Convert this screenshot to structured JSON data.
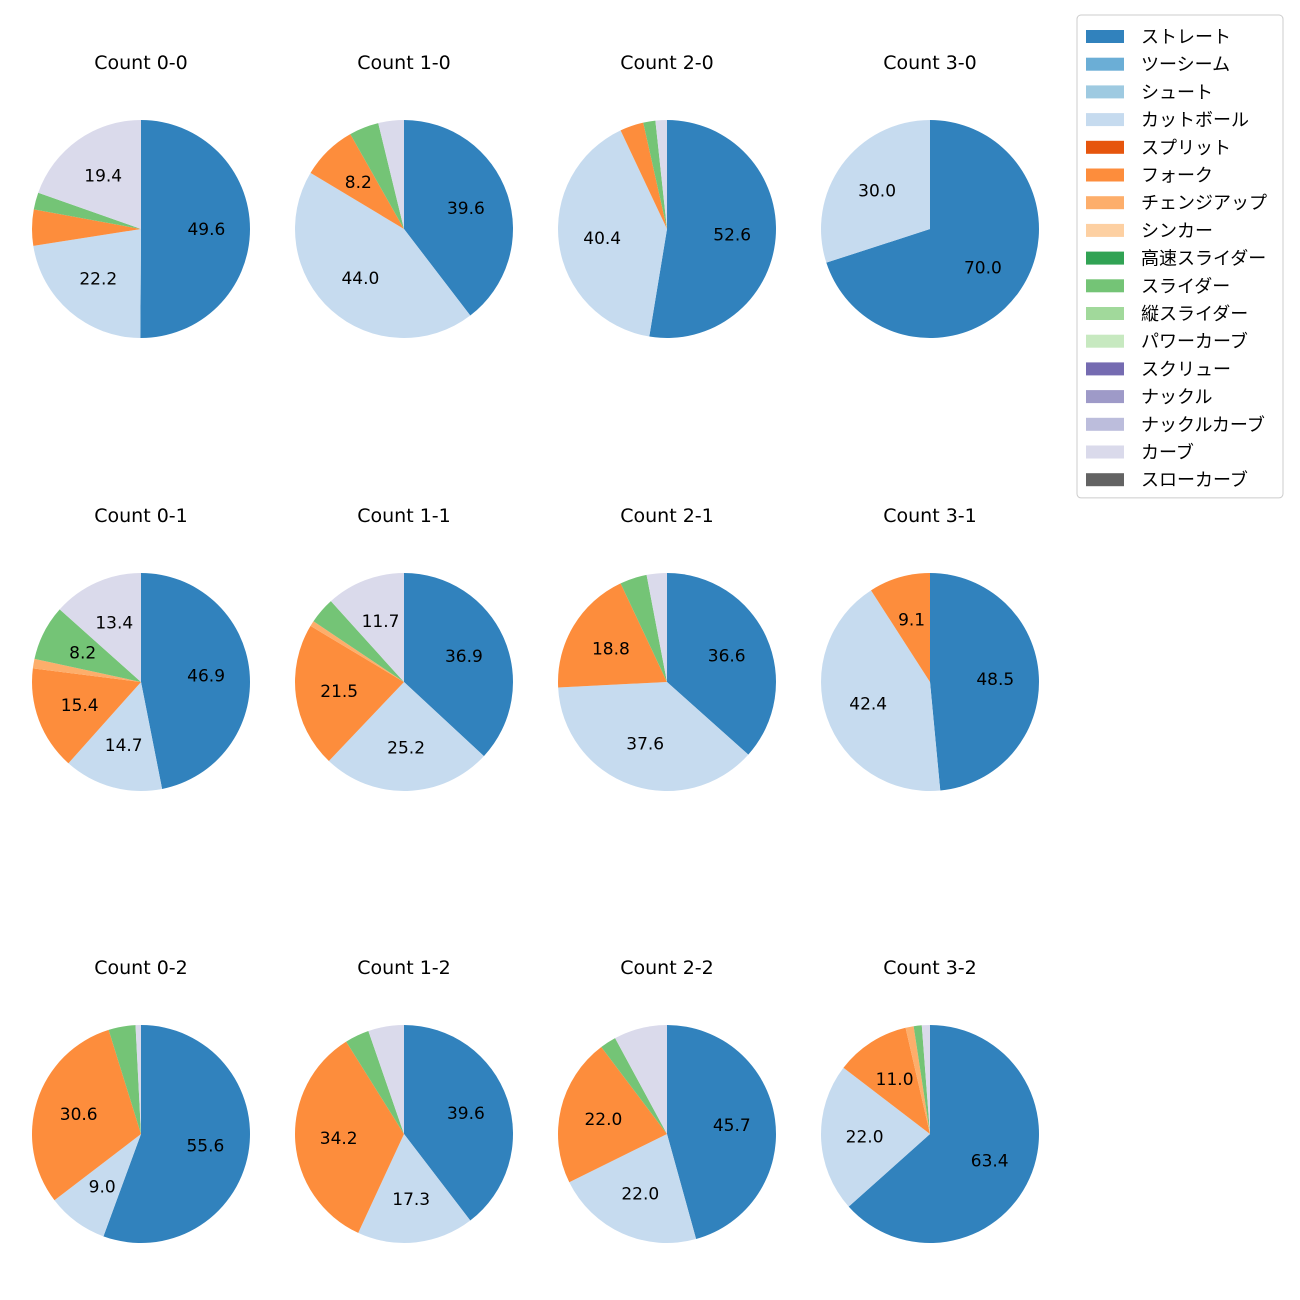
{
  "chart_data": {
    "type": "pie",
    "legend": {
      "position": "top-right",
      "items": [
        {
          "name": "ストレート",
          "color": "#3182bd"
        },
        {
          "name": "ツーシーム",
          "color": "#6baed6"
        },
        {
          "name": "シュート",
          "color": "#9ecae1"
        },
        {
          "name": "カットボール",
          "color": "#c6dbef"
        },
        {
          "name": "スプリット",
          "color": "#e6550d"
        },
        {
          "name": "フォーク",
          "color": "#fd8d3c"
        },
        {
          "name": "チェンジアップ",
          "color": "#fdae6b"
        },
        {
          "name": "シンカー",
          "color": "#fdd0a2"
        },
        {
          "name": "高速スライダー",
          "color": "#31a354"
        },
        {
          "name": "スライダー",
          "color": "#74c476"
        },
        {
          "name": "縦スライダー",
          "color": "#a1d99b"
        },
        {
          "name": "パワーカーブ",
          "color": "#c7e9c0"
        },
        {
          "name": "スクリュー",
          "color": "#756bb1"
        },
        {
          "name": "ナックル",
          "color": "#9e9ac8"
        },
        {
          "name": "ナックルカーブ",
          "color": "#bcbddc"
        },
        {
          "name": "カーブ",
          "color": "#dadaeb"
        },
        {
          "name": "スローカーブ",
          "color": "#636363"
        }
      ]
    },
    "pies": [
      {
        "title": "Count 0-0",
        "slices": [
          {
            "type": "ストレート",
            "value": 49.6,
            "label": "49.6"
          },
          {
            "type": "カットボール",
            "value": 22.2,
            "label": "22.2"
          },
          {
            "type": "フォーク",
            "value": 5.3
          },
          {
            "type": "スライダー",
            "value": 2.5
          },
          {
            "type": "カーブ",
            "value": 19.4,
            "label": "19.4"
          }
        ]
      },
      {
        "title": "Count 1-0",
        "slices": [
          {
            "type": "ストレート",
            "value": 39.6,
            "label": "39.6"
          },
          {
            "type": "カットボール",
            "value": 44.0,
            "label": "44.0"
          },
          {
            "type": "フォーク",
            "value": 8.2,
            "label": "8.2"
          },
          {
            "type": "スライダー",
            "value": 4.4
          },
          {
            "type": "カーブ",
            "value": 3.8
          }
        ]
      },
      {
        "title": "Count 2-0",
        "slices": [
          {
            "type": "ストレート",
            "value": 52.6,
            "label": "52.6"
          },
          {
            "type": "カットボール",
            "value": 40.4,
            "label": "40.4"
          },
          {
            "type": "フォーク",
            "value": 3.5
          },
          {
            "type": "スライダー",
            "value": 1.8
          },
          {
            "type": "カーブ",
            "value": 1.7
          }
        ]
      },
      {
        "title": "Count 3-0",
        "slices": [
          {
            "type": "ストレート",
            "value": 70.0,
            "label": "70.0"
          },
          {
            "type": "カットボール",
            "value": 30.0,
            "label": "30.0"
          }
        ]
      },
      {
        "title": "Count 0-1",
        "slices": [
          {
            "type": "ストレート",
            "value": 46.9,
            "label": "46.9"
          },
          {
            "type": "カットボール",
            "value": 14.7,
            "label": "14.7"
          },
          {
            "type": "フォーク",
            "value": 15.4,
            "label": "15.4"
          },
          {
            "type": "チェンジアップ",
            "value": 1.4
          },
          {
            "type": "スライダー",
            "value": 8.2,
            "label": "8.2"
          },
          {
            "type": "カーブ",
            "value": 13.4,
            "label": "13.4"
          }
        ]
      },
      {
        "title": "Count 1-1",
        "slices": [
          {
            "type": "ストレート",
            "value": 36.9,
            "label": "36.9"
          },
          {
            "type": "カットボール",
            "value": 25.2,
            "label": "25.2"
          },
          {
            "type": "フォーク",
            "value": 21.5,
            "label": "21.5"
          },
          {
            "type": "チェンジアップ",
            "value": 0.8
          },
          {
            "type": "スライダー",
            "value": 3.9
          },
          {
            "type": "カーブ",
            "value": 11.7,
            "label": "11.7"
          }
        ]
      },
      {
        "title": "Count 2-1",
        "slices": [
          {
            "type": "ストレート",
            "value": 36.6,
            "label": "36.6"
          },
          {
            "type": "カットボール",
            "value": 37.6,
            "label": "37.6"
          },
          {
            "type": "フォーク",
            "value": 18.8,
            "label": "18.8"
          },
          {
            "type": "スライダー",
            "value": 4.0
          },
          {
            "type": "カーブ",
            "value": 3.0
          }
        ]
      },
      {
        "title": "Count 3-1",
        "slices": [
          {
            "type": "ストレート",
            "value": 48.5,
            "label": "48.5"
          },
          {
            "type": "カットボール",
            "value": 42.4,
            "label": "42.4"
          },
          {
            "type": "フォーク",
            "value": 9.1,
            "label": "9.1"
          }
        ]
      },
      {
        "title": "Count 0-2",
        "slices": [
          {
            "type": "ストレート",
            "value": 55.6,
            "label": "55.6"
          },
          {
            "type": "カットボール",
            "value": 9.0,
            "label": "9.0"
          },
          {
            "type": "フォーク",
            "value": 30.6,
            "label": "30.6"
          },
          {
            "type": "スライダー",
            "value": 4.0
          },
          {
            "type": "カーブ",
            "value": 0.8
          }
        ]
      },
      {
        "title": "Count 1-2",
        "slices": [
          {
            "type": "ストレート",
            "value": 39.6,
            "label": "39.6"
          },
          {
            "type": "カットボール",
            "value": 17.3,
            "label": "17.3"
          },
          {
            "type": "フォーク",
            "value": 34.2,
            "label": "34.2"
          },
          {
            "type": "スライダー",
            "value": 3.6
          },
          {
            "type": "カーブ",
            "value": 5.3
          }
        ]
      },
      {
        "title": "Count 2-2",
        "slices": [
          {
            "type": "ストレート",
            "value": 45.7,
            "label": "45.7"
          },
          {
            "type": "カットボール",
            "value": 22.0,
            "label": "22.0"
          },
          {
            "type": "フォーク",
            "value": 22.0,
            "label": "22.0"
          },
          {
            "type": "スライダー",
            "value": 2.4
          },
          {
            "type": "カーブ",
            "value": 7.9
          }
        ]
      },
      {
        "title": "Count 3-2",
        "slices": [
          {
            "type": "ストレート",
            "value": 63.4,
            "label": "63.4"
          },
          {
            "type": "カットボール",
            "value": 22.0,
            "label": "22.0"
          },
          {
            "type": "フォーク",
            "value": 11.0,
            "label": "11.0"
          },
          {
            "type": "チェンジアップ",
            "value": 1.2
          },
          {
            "type": "スライダー",
            "value": 1.2
          },
          {
            "type": "カーブ",
            "value": 1.2
          }
        ]
      }
    ]
  }
}
